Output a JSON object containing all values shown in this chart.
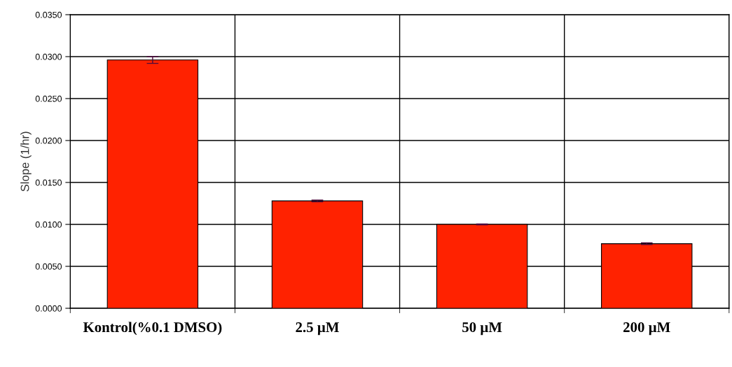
{
  "chart_data": {
    "type": "bar",
    "ylabel": "Slope (1/hr)",
    "categories": [
      "Kontrol(%0.1 DMSO)",
      "2.5 µM",
      "50 µM",
      "200 µM"
    ],
    "values": [
      0.0296,
      0.0128,
      0.01,
      0.0077
    ],
    "errors": [
      0.0004,
      0.0001,
      5e-05,
      0.0001
    ],
    "color": "#ff2200",
    "ylim": [
      0,
      0.035
    ],
    "yticks": [
      {
        "value": 0,
        "label": "0.0000"
      },
      {
        "value": 0.005,
        "label": "0.0050"
      },
      {
        "value": 0.01,
        "label": "0.0100"
      },
      {
        "value": 0.015,
        "label": "0.0150"
      },
      {
        "value": 0.02,
        "label": "0.0200"
      },
      {
        "value": 0.025,
        "label": "0.0250"
      },
      {
        "value": 0.03,
        "label": "0.0300"
      },
      {
        "value": 0.035,
        "label": "0.0350"
      }
    ],
    "grid": true
  }
}
